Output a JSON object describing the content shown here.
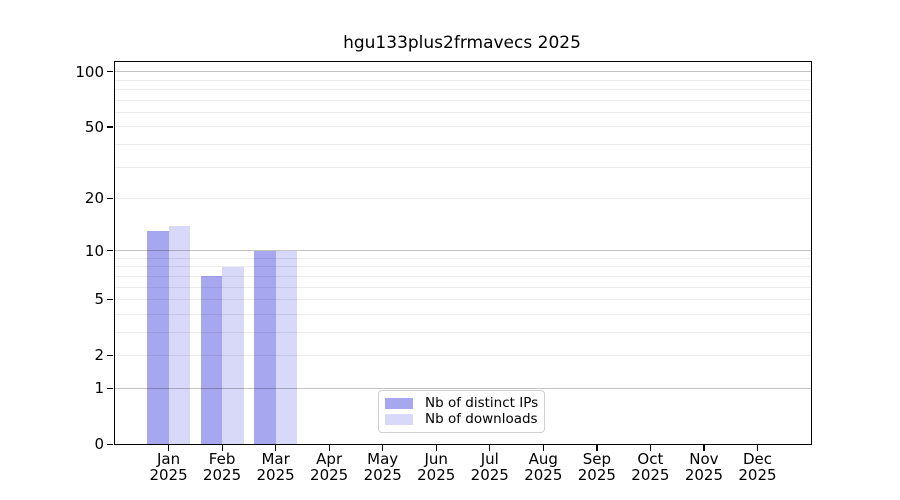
{
  "chart_data": {
    "type": "bar",
    "title": "hgu133plus2frmavecs 2025",
    "year": "2025",
    "months": [
      "Jan",
      "Feb",
      "Mar",
      "Apr",
      "May",
      "Jun",
      "Jul",
      "Aug",
      "Sep",
      "Oct",
      "Nov",
      "Dec"
    ],
    "series": [
      {
        "name": "Nb of distinct IPs",
        "color": "#a7a7f0",
        "values": [
          13,
          7,
          10,
          0,
          0,
          0,
          0,
          0,
          0,
          0,
          0,
          0
        ]
      },
      {
        "name": "Nb of downloads",
        "color": "#d8d8f8",
        "values": [
          14,
          8,
          10,
          0,
          0,
          0,
          0,
          0,
          0,
          0,
          0,
          0
        ]
      }
    ],
    "y_axis": {
      "scale": "log1p",
      "ylim": [
        0,
        113
      ],
      "tick_labels": [
        0,
        1,
        2,
        5,
        10,
        20,
        50,
        100
      ],
      "major_gridlines": [
        1,
        10,
        100
      ],
      "minor_gridlines": [
        2,
        3,
        4,
        5,
        6,
        7,
        8,
        9,
        20,
        30,
        40,
        50,
        60,
        70,
        80,
        90
      ]
    },
    "legend": {
      "position": "lower center",
      "entries": [
        "Nb of distinct IPs",
        "Nb of downloads"
      ]
    },
    "grid": true
  },
  "colors": {
    "axis": "#000000",
    "text": "#000000",
    "major_grid": "rgba(0,0,0,0.235)",
    "minor_grid": "rgba(0,0,0,0.075)",
    "legend_border": "#d0d0d0",
    "legend_bg": "#ffffff",
    "background": "#ffffff"
  }
}
